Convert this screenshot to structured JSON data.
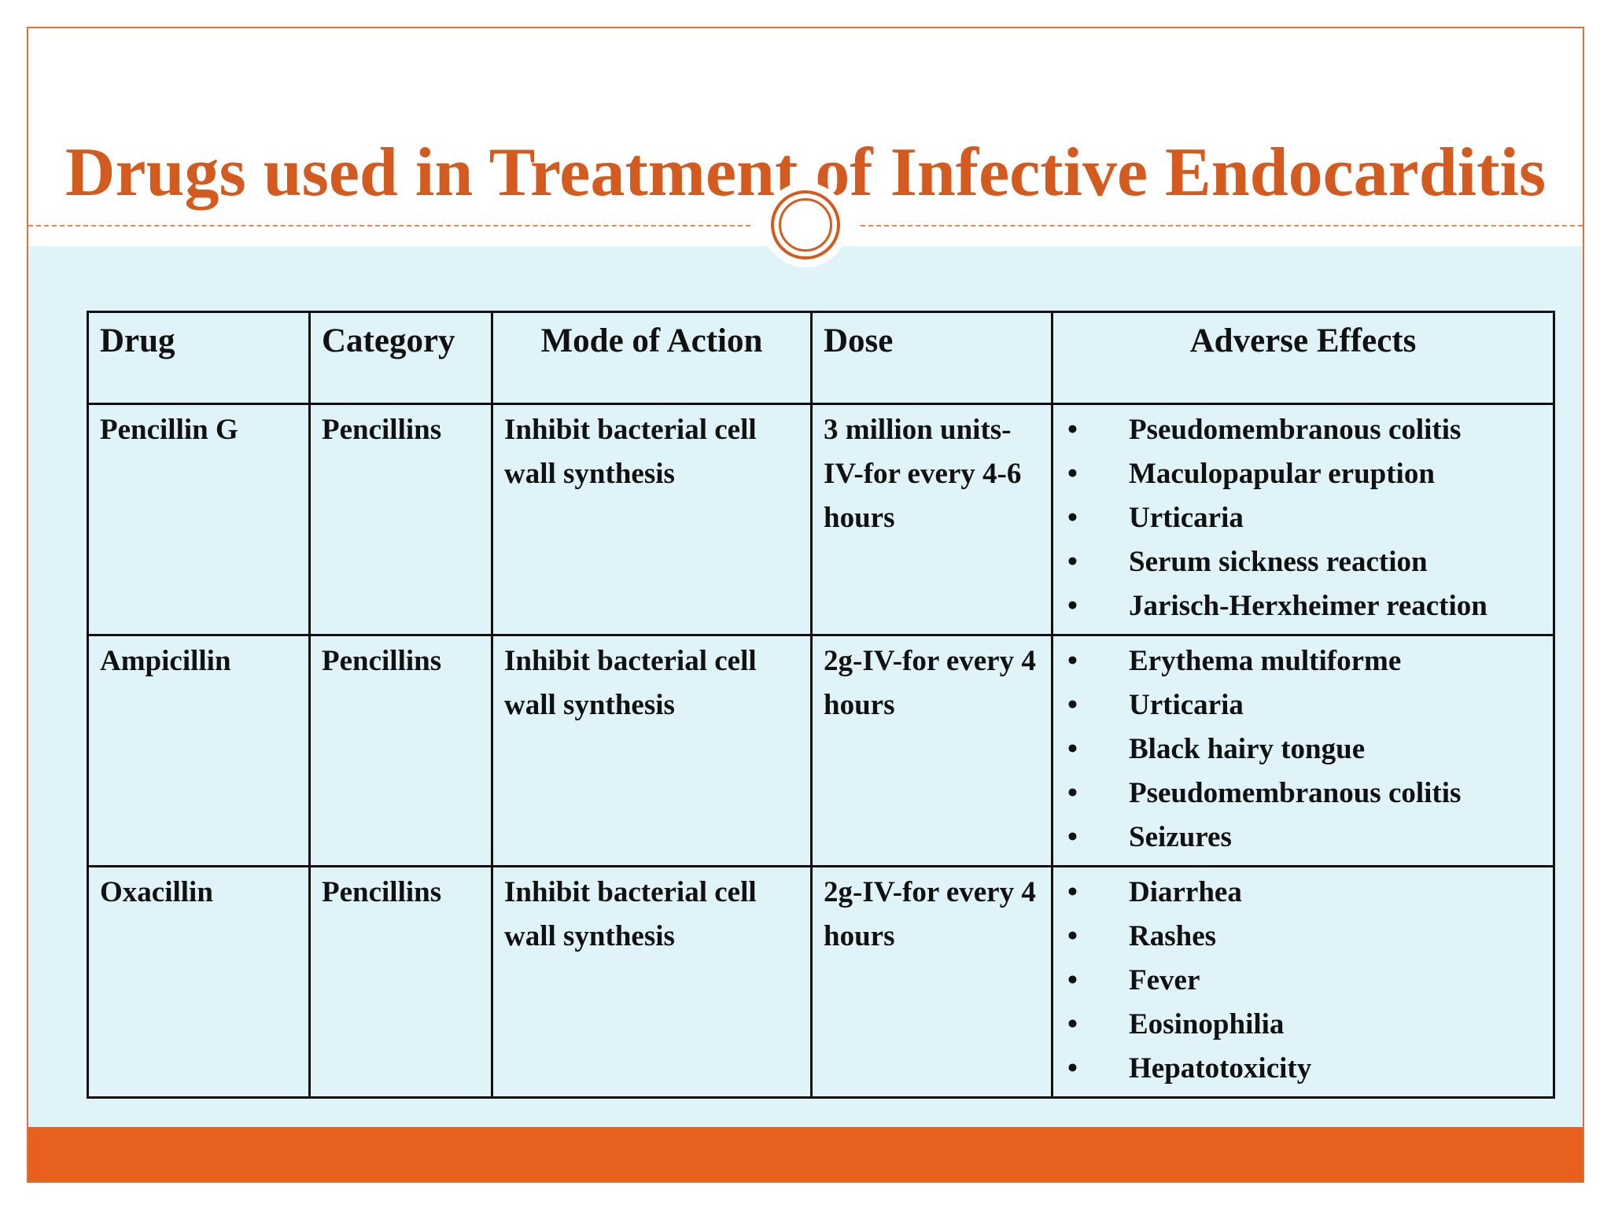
{
  "slide": {
    "title": "Drugs used in Treatment of Infective Endocarditis"
  },
  "table": {
    "headers": {
      "drug": "Drug",
      "category": "Category",
      "mode": "Mode of Action",
      "dose": "Dose",
      "adverse": "Adverse Effects"
    },
    "rows": [
      {
        "drug": "Pencillin G",
        "category": "Pencillins",
        "mode": "Inhibit bacterial cell wall synthesis",
        "dose": "3 million units-IV-for every 4-6 hours",
        "effects": [
          "Pseudomembranous colitis",
          "Maculopapular eruption",
          "Urticaria",
          "Serum sickness reaction",
          "Jarisch-Herxheimer reaction"
        ]
      },
      {
        "drug": "Ampicillin",
        "category": "Pencillins",
        "mode": "Inhibit bacterial cell wall synthesis",
        "dose": "2g-IV-for every 4 hours",
        "effects": [
          "Erythema multiforme",
          "Urticaria",
          "Black hairy tongue",
          "Pseudomembranous colitis",
          "Seizures"
        ]
      },
      {
        "drug": "Oxacillin",
        "category": "Pencillins",
        "mode": "Inhibit bacterial cell wall synthesis",
        "dose": "2g-IV-for every 4 hours",
        "effects": [
          "Diarrhea",
          "Rashes",
          "Fever",
          "Eosinophilia",
          "Hepatotoxicity"
        ]
      }
    ]
  },
  "theme": {
    "accent": "#e8601e",
    "title_color": "#d35b1f",
    "panel_background": "#dff3f8"
  },
  "bullet_glyph": "•"
}
